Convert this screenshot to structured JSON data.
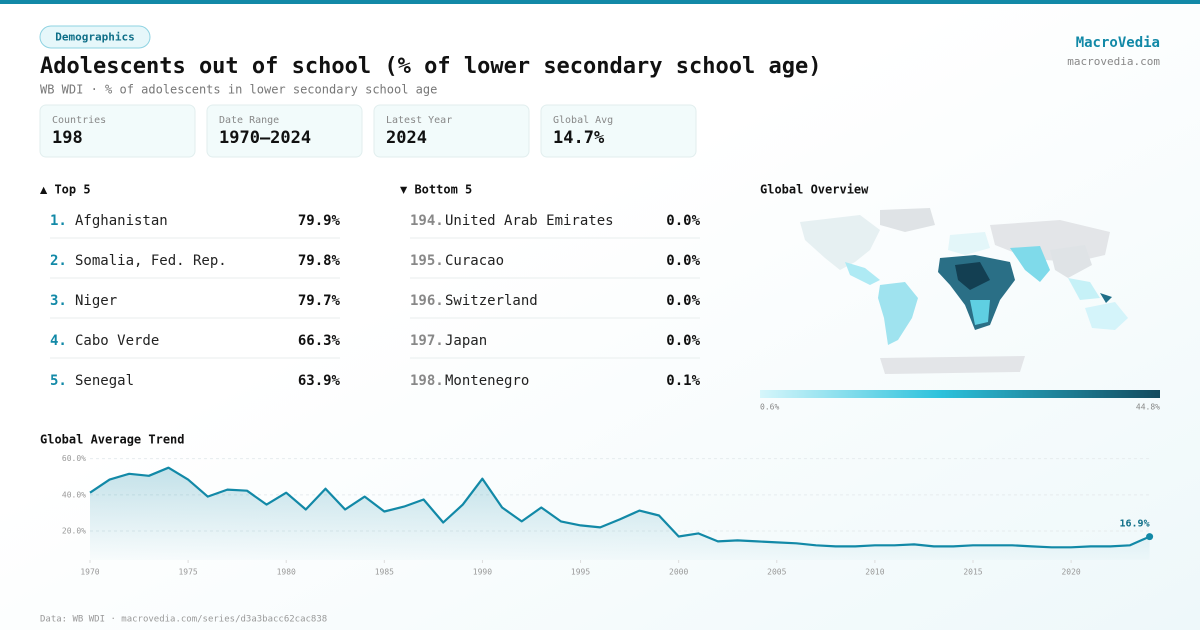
{
  "header": {
    "tag": "Demographics",
    "title": "Adolescents out of school (% of lower secondary school age)",
    "subtitle": "WB WDI · % of adolescents in lower secondary school age",
    "brand": "MacroVedia",
    "site": "macrovedia.com"
  },
  "stats": [
    {
      "label": "Countries",
      "value": "198"
    },
    {
      "label": "Date Range",
      "value": "1970–2024"
    },
    {
      "label": "Latest Year",
      "value": "2024"
    },
    {
      "label": "Global Avg",
      "value": "14.7%"
    }
  ],
  "top": {
    "title": "▲ Top 5",
    "rows": [
      {
        "rank": "1.",
        "name": "Afghanistan",
        "value": "79.9%"
      },
      {
        "rank": "2.",
        "name": "Somalia, Fed. Rep.",
        "value": "79.8%"
      },
      {
        "rank": "3.",
        "name": "Niger",
        "value": "79.7%"
      },
      {
        "rank": "4.",
        "name": "Cabo Verde",
        "value": "66.3%"
      },
      {
        "rank": "5.",
        "name": "Senegal",
        "value": "63.9%"
      }
    ]
  },
  "bottom": {
    "title": "▼ Bottom 5",
    "rows": [
      {
        "rank": "194.",
        "name": "United Arab Emirates",
        "value": "0.0%"
      },
      {
        "rank": "195.",
        "name": "Curacao",
        "value": "0.0%"
      },
      {
        "rank": "196.",
        "name": "Switzerland",
        "value": "0.0%"
      },
      {
        "rank": "197.",
        "name": "Japan",
        "value": "0.0%"
      },
      {
        "rank": "198.",
        "name": "Montenegro",
        "value": "0.1%"
      }
    ]
  },
  "map": {
    "title": "Global Overview",
    "legend_min": "0.6%",
    "legend_max": "44.8%"
  },
  "chart_data": {
    "type": "line",
    "title": "Global Average Trend",
    "color": "#1289a7",
    "x": [
      1970,
      1971,
      1972,
      1973,
      1974,
      1975,
      1976,
      1977,
      1978,
      1979,
      1980,
      1981,
      1982,
      1983,
      1984,
      1985,
      1986,
      1987,
      1988,
      1989,
      1990,
      1991,
      1992,
      1993,
      1994,
      1995,
      1996,
      1997,
      1998,
      1999,
      2000,
      2001,
      2002,
      2003,
      2004,
      2005,
      2006,
      2007,
      2008,
      2009,
      2010,
      2011,
      2012,
      2013,
      2014,
      2015,
      2016,
      2017,
      2018,
      2019,
      2020,
      2021,
      2022,
      2023,
      2024
    ],
    "values": [
      41.2,
      48.4,
      51.6,
      50.5,
      55,
      48.4,
      39,
      42.9,
      42.3,
      34.6,
      41.2,
      31.9,
      43.4,
      31.9,
      39,
      30.8,
      33.5,
      37.4,
      24.7,
      34.6,
      48.9,
      33,
      25.3,
      33,
      25.3,
      23.1,
      22,
      26.4,
      31.3,
      28.6,
      17,
      18.7,
      14.3,
      14.8,
      14.3,
      13.7,
      13.2,
      12.1,
      11.5,
      11.5,
      12.1,
      12.1,
      12.6,
      11.5,
      11.5,
      12.1,
      12.1,
      12.1,
      11.5,
      11,
      11,
      11.5,
      11.5,
      12.1,
      16.9
    ],
    "value_labels": [
      null,
      null,
      null,
      null,
      null,
      null,
      null,
      null,
      null,
      null,
      null,
      null,
      null,
      null,
      null,
      null,
      null,
      null,
      null,
      null,
      null,
      null,
      null,
      null,
      null,
      null,
      null,
      null,
      null,
      null,
      null,
      null,
      null,
      null,
      null,
      null,
      null,
      null,
      null,
      null,
      null,
      null,
      null,
      null,
      null,
      null,
      null,
      null,
      null,
      null,
      null,
      null,
      null,
      null,
      "16.9%"
    ],
    "xlim": [
      1970,
      2024
    ],
    "xticks": [
      1970,
      1975,
      1980,
      1985,
      1990,
      1995,
      2000,
      2005,
      2010,
      2015,
      2020
    ],
    "ylim": [
      4,
      62
    ],
    "yticks": [
      {
        "value": 20,
        "label": "20.0%"
      },
      {
        "value": 40,
        "label": "40.0%"
      },
      {
        "value": 60,
        "label": "60.0%"
      }
    ],
    "grid": true
  },
  "footer": "Data: WB WDI · macrovedia.com/series/d3a3bacc62cac838"
}
